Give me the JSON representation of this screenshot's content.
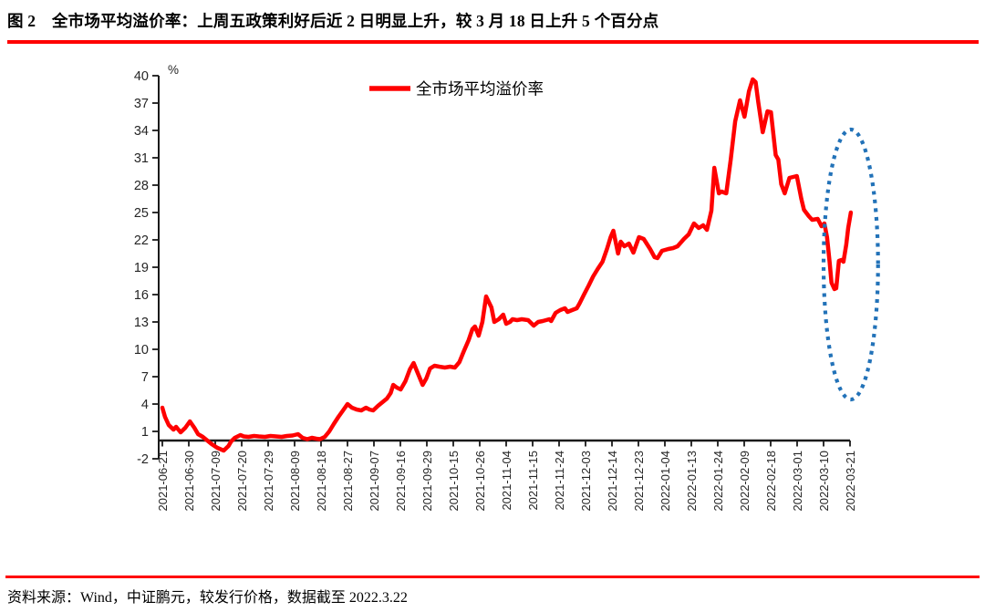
{
  "title": "图 2　全市场平均溢价率：上周五政策利好后近 2 日明显上升，较 3 月 18 日上升 5 个百分点",
  "source": "资料来源：Wind，中证鹏元，较发行价格，数据截至 2022.3.22",
  "colors": {
    "series_red": "#FF0000",
    "annotation_blue": "#2272B8",
    "divider_red": "#FF0000",
    "axis": "#1A1A1A",
    "label": "#262626",
    "text": "#000000"
  },
  "chart_data": {
    "type": "line",
    "unit_label": "%",
    "grid": false,
    "ylim": [
      -2,
      40
    ],
    "y_ticks": [
      -2,
      1,
      4,
      7,
      10,
      13,
      16,
      19,
      22,
      25,
      28,
      31,
      34,
      37,
      40
    ],
    "legend": {
      "label": "全市场平均溢价率",
      "position": "top-center"
    },
    "categories": [
      "2021-06-21",
      "2021-06-30",
      "2021-07-09",
      "2021-07-20",
      "2021-07-29",
      "2021-08-09",
      "2021-08-18",
      "2021-08-27",
      "2021-09-07",
      "2021-09-16",
      "2021-09-29",
      "2021-10-15",
      "2021-10-26",
      "2021-11-04",
      "2021-11-15",
      "2021-11-24",
      "2021-12-03",
      "2021-12-14",
      "2021-12-23",
      "2022-01-04",
      "2022-01-13",
      "2022-01-24",
      "2022-02-09",
      "2022-02-18",
      "2022-03-01",
      "2022-03-10",
      "2022-03-21"
    ],
    "series": [
      {
        "name": "全市场平均溢价率",
        "color": "#FF0000",
        "points": [
          [
            0,
            3.6
          ],
          [
            0.1,
            2.6
          ],
          [
            0.24,
            1.7
          ],
          [
            0.42,
            1.2
          ],
          [
            0.52,
            1.5
          ],
          [
            0.69,
            0.9
          ],
          [
            0.87,
            1.4
          ],
          [
            1.04,
            2.1
          ],
          [
            1.21,
            1.4
          ],
          [
            1.35,
            0.7
          ],
          [
            1.53,
            0.4
          ],
          [
            1.7,
            0.0
          ],
          [
            1.87,
            -0.4
          ],
          [
            2.08,
            -0.8
          ],
          [
            2.32,
            -1.1
          ],
          [
            2.5,
            -0.6
          ],
          [
            2.6,
            -0.1
          ],
          [
            2.74,
            0.3
          ],
          [
            2.95,
            0.6
          ],
          [
            3.08,
            0.45
          ],
          [
            3.26,
            0.4
          ],
          [
            3.47,
            0.5
          ],
          [
            3.64,
            0.45
          ],
          [
            3.88,
            0.4
          ],
          [
            4.09,
            0.5
          ],
          [
            4.3,
            0.45
          ],
          [
            4.51,
            0.4
          ],
          [
            4.71,
            0.5
          ],
          [
            4.92,
            0.55
          ],
          [
            5.13,
            0.7
          ],
          [
            5.3,
            0.3
          ],
          [
            5.48,
            0.15
          ],
          [
            5.65,
            0.3
          ],
          [
            5.82,
            0.2
          ],
          [
            5.96,
            0.15
          ],
          [
            6.14,
            0.4
          ],
          [
            6.31,
            1.0
          ],
          [
            6.48,
            1.8
          ],
          [
            6.66,
            2.6
          ],
          [
            6.83,
            3.3
          ],
          [
            7.0,
            4.0
          ],
          [
            7.17,
            3.6
          ],
          [
            7.35,
            3.4
          ],
          [
            7.52,
            3.3
          ],
          [
            7.7,
            3.6
          ],
          [
            7.83,
            3.4
          ],
          [
            7.97,
            3.3
          ],
          [
            8.15,
            3.8
          ],
          [
            8.32,
            4.2
          ],
          [
            8.49,
            4.6
          ],
          [
            8.63,
            5.2
          ],
          [
            8.73,
            6.1
          ],
          [
            8.87,
            5.8
          ],
          [
            9.01,
            5.6
          ],
          [
            9.19,
            6.5
          ],
          [
            9.36,
            7.8
          ],
          [
            9.5,
            8.5
          ],
          [
            9.64,
            7.5
          ],
          [
            9.84,
            6.1
          ],
          [
            9.98,
            6.8
          ],
          [
            10.12,
            7.9
          ],
          [
            10.29,
            8.2
          ],
          [
            10.47,
            8.1
          ],
          [
            10.68,
            8.0
          ],
          [
            10.88,
            8.1
          ],
          [
            11.06,
            8.0
          ],
          [
            11.23,
            8.6
          ],
          [
            11.4,
            9.8
          ],
          [
            11.58,
            11.0
          ],
          [
            11.72,
            12.2
          ],
          [
            11.82,
            12.5
          ],
          [
            11.96,
            11.5
          ],
          [
            12.1,
            13.0
          ],
          [
            12.24,
            15.8
          ],
          [
            12.34,
            15.2
          ],
          [
            12.44,
            14.6
          ],
          [
            12.55,
            13.0
          ],
          [
            12.72,
            13.3
          ],
          [
            12.89,
            13.8
          ],
          [
            13.0,
            12.8
          ],
          [
            13.14,
            13.0
          ],
          [
            13.24,
            13.3
          ],
          [
            13.41,
            13.2
          ],
          [
            13.59,
            13.3
          ],
          [
            13.83,
            13.2
          ],
          [
            14.04,
            12.6
          ],
          [
            14.21,
            13.0
          ],
          [
            14.38,
            13.1
          ],
          [
            14.63,
            13.3
          ],
          [
            14.7,
            13.1
          ],
          [
            14.87,
            14.0
          ],
          [
            15.04,
            14.3
          ],
          [
            15.22,
            14.5
          ],
          [
            15.32,
            14.1
          ],
          [
            15.49,
            14.3
          ],
          [
            15.67,
            14.5
          ],
          [
            15.77,
            15.0
          ],
          [
            15.94,
            16.0
          ],
          [
            16.12,
            17.0
          ],
          [
            16.29,
            18.0
          ],
          [
            16.46,
            18.8
          ],
          [
            16.64,
            19.6
          ],
          [
            16.81,
            21.0
          ],
          [
            16.95,
            22.3
          ],
          [
            17.05,
            23.0
          ],
          [
            17.23,
            20.5
          ],
          [
            17.33,
            21.8
          ],
          [
            17.47,
            21.3
          ],
          [
            17.64,
            21.6
          ],
          [
            17.81,
            20.6
          ],
          [
            18.02,
            22.3
          ],
          [
            18.2,
            22.1
          ],
          [
            18.44,
            21.0
          ],
          [
            18.61,
            20.1
          ],
          [
            18.72,
            20.0
          ],
          [
            18.89,
            20.8
          ],
          [
            19.13,
            21.0
          ],
          [
            19.31,
            21.1
          ],
          [
            19.48,
            21.3
          ],
          [
            19.72,
            22.1
          ],
          [
            19.9,
            22.6
          ],
          [
            20.1,
            23.8
          ],
          [
            20.28,
            23.3
          ],
          [
            20.45,
            23.6
          ],
          [
            20.59,
            23.1
          ],
          [
            20.76,
            25.2
          ],
          [
            20.87,
            29.9
          ],
          [
            21.04,
            27.1
          ],
          [
            21.14,
            27.3
          ],
          [
            21.32,
            27.1
          ],
          [
            21.49,
            30.8
          ],
          [
            21.66,
            35.0
          ],
          [
            21.84,
            37.3
          ],
          [
            22.01,
            35.5
          ],
          [
            22.18,
            38.3
          ],
          [
            22.32,
            39.6
          ],
          [
            22.43,
            39.3
          ],
          [
            22.53,
            37.1
          ],
          [
            22.7,
            33.8
          ],
          [
            22.88,
            36.1
          ],
          [
            23.01,
            36.0
          ],
          [
            23.19,
            31.3
          ],
          [
            23.29,
            30.8
          ],
          [
            23.4,
            28.1
          ],
          [
            23.53,
            27.1
          ],
          [
            23.71,
            28.8
          ],
          [
            23.99,
            29.0
          ],
          [
            24.16,
            26.5
          ],
          [
            24.26,
            25.3
          ],
          [
            24.44,
            24.6
          ],
          [
            24.57,
            24.2
          ],
          [
            24.78,
            24.3
          ],
          [
            24.92,
            23.5
          ],
          [
            25.03,
            23.8
          ],
          [
            25.13,
            22.3
          ],
          [
            25.23,
            19.5
          ],
          [
            25.3,
            17.3
          ],
          [
            25.41,
            16.6
          ],
          [
            25.48,
            16.7
          ],
          [
            25.58,
            19.7
          ],
          [
            25.68,
            19.8
          ],
          [
            25.75,
            19.6
          ],
          [
            25.86,
            21.5
          ],
          [
            25.93,
            23.3
          ],
          [
            26.03,
            25.0
          ]
        ]
      }
    ],
    "annotation": {
      "shape": "dotted-ellipse",
      "color": "#2272B8",
      "center_x": 26.03,
      "center_y": 19.3,
      "radius_x": 1.03,
      "radius_y": 14.8
    }
  }
}
